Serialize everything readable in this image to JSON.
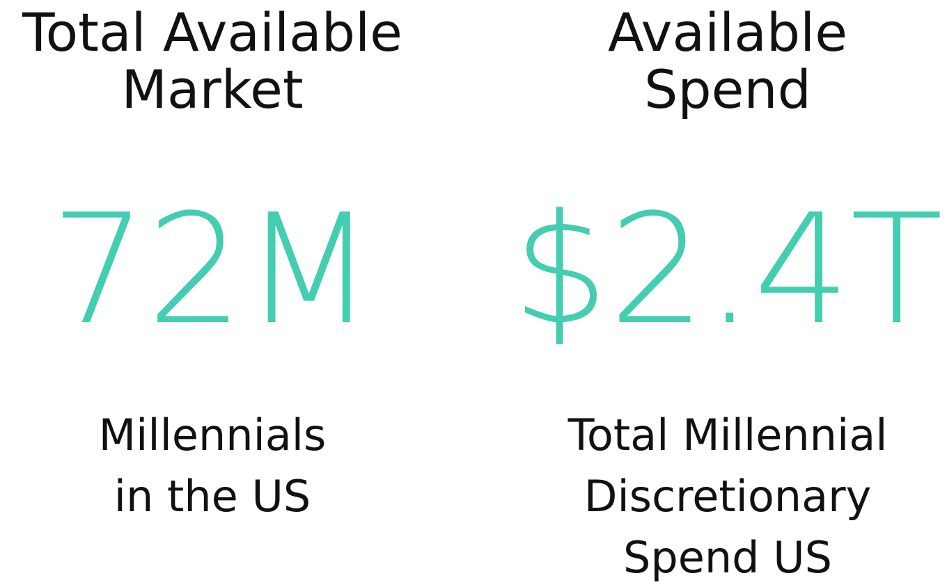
{
  "accent_color": "#43CDB1",
  "left": {
    "heading_line1": "Total Available",
    "heading_line2": "Market",
    "value": "72M",
    "caption_line1": "Millennials",
    "caption_line2": "in the US"
  },
  "right": {
    "heading_line1": "Available",
    "heading_line2": "Spend",
    "value": "$2.4T",
    "caption_line1": "Total Millennial",
    "caption_line2": "Discretionary",
    "caption_line3": "Spend US"
  }
}
